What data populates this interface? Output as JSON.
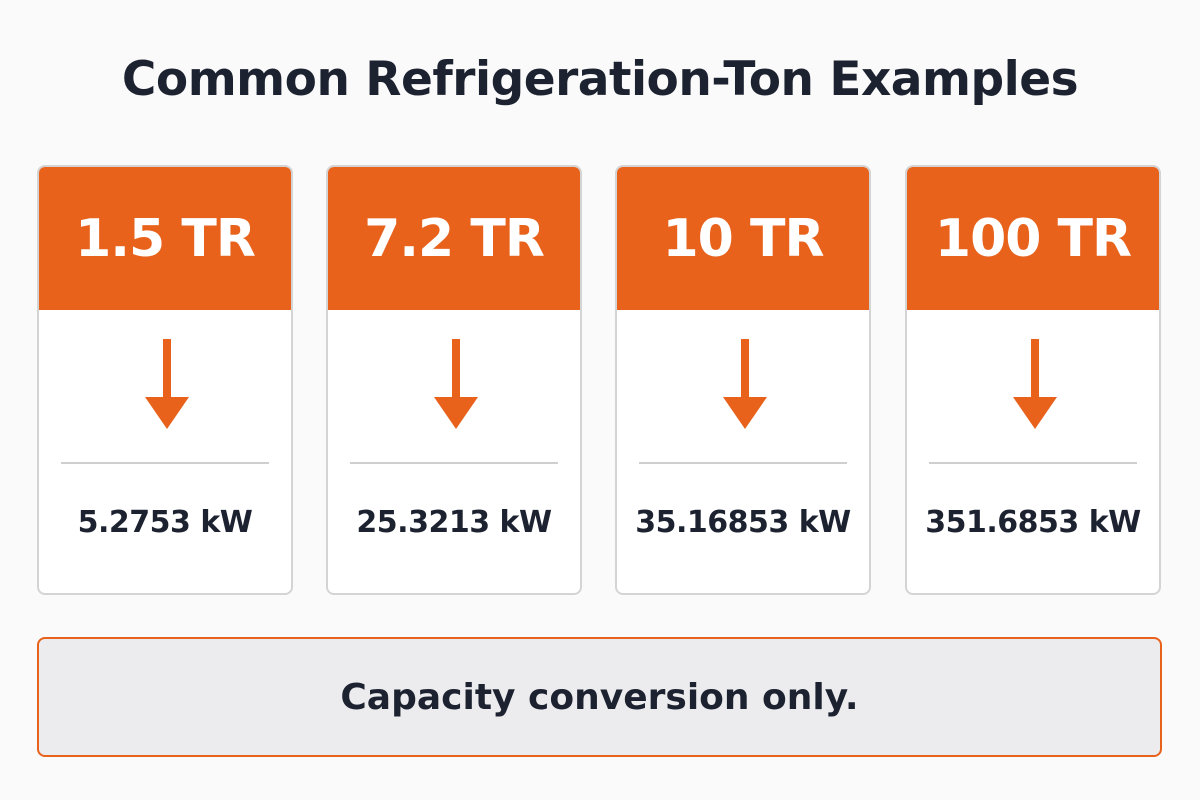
{
  "header": {
    "title": "Common Refrigeration-Ton Examples"
  },
  "cards": [
    {
      "tons": "1.5 TR",
      "power": "5.2753 kW"
    },
    {
      "tons": "7.2 TR",
      "power": "25.3213 kW"
    },
    {
      "tons": "10 TR",
      "power": "35.16853 kW"
    },
    {
      "tons": "100 TR",
      "power": "351.6853 kW"
    }
  ],
  "footer": {
    "note": "Capacity conversion only."
  }
}
